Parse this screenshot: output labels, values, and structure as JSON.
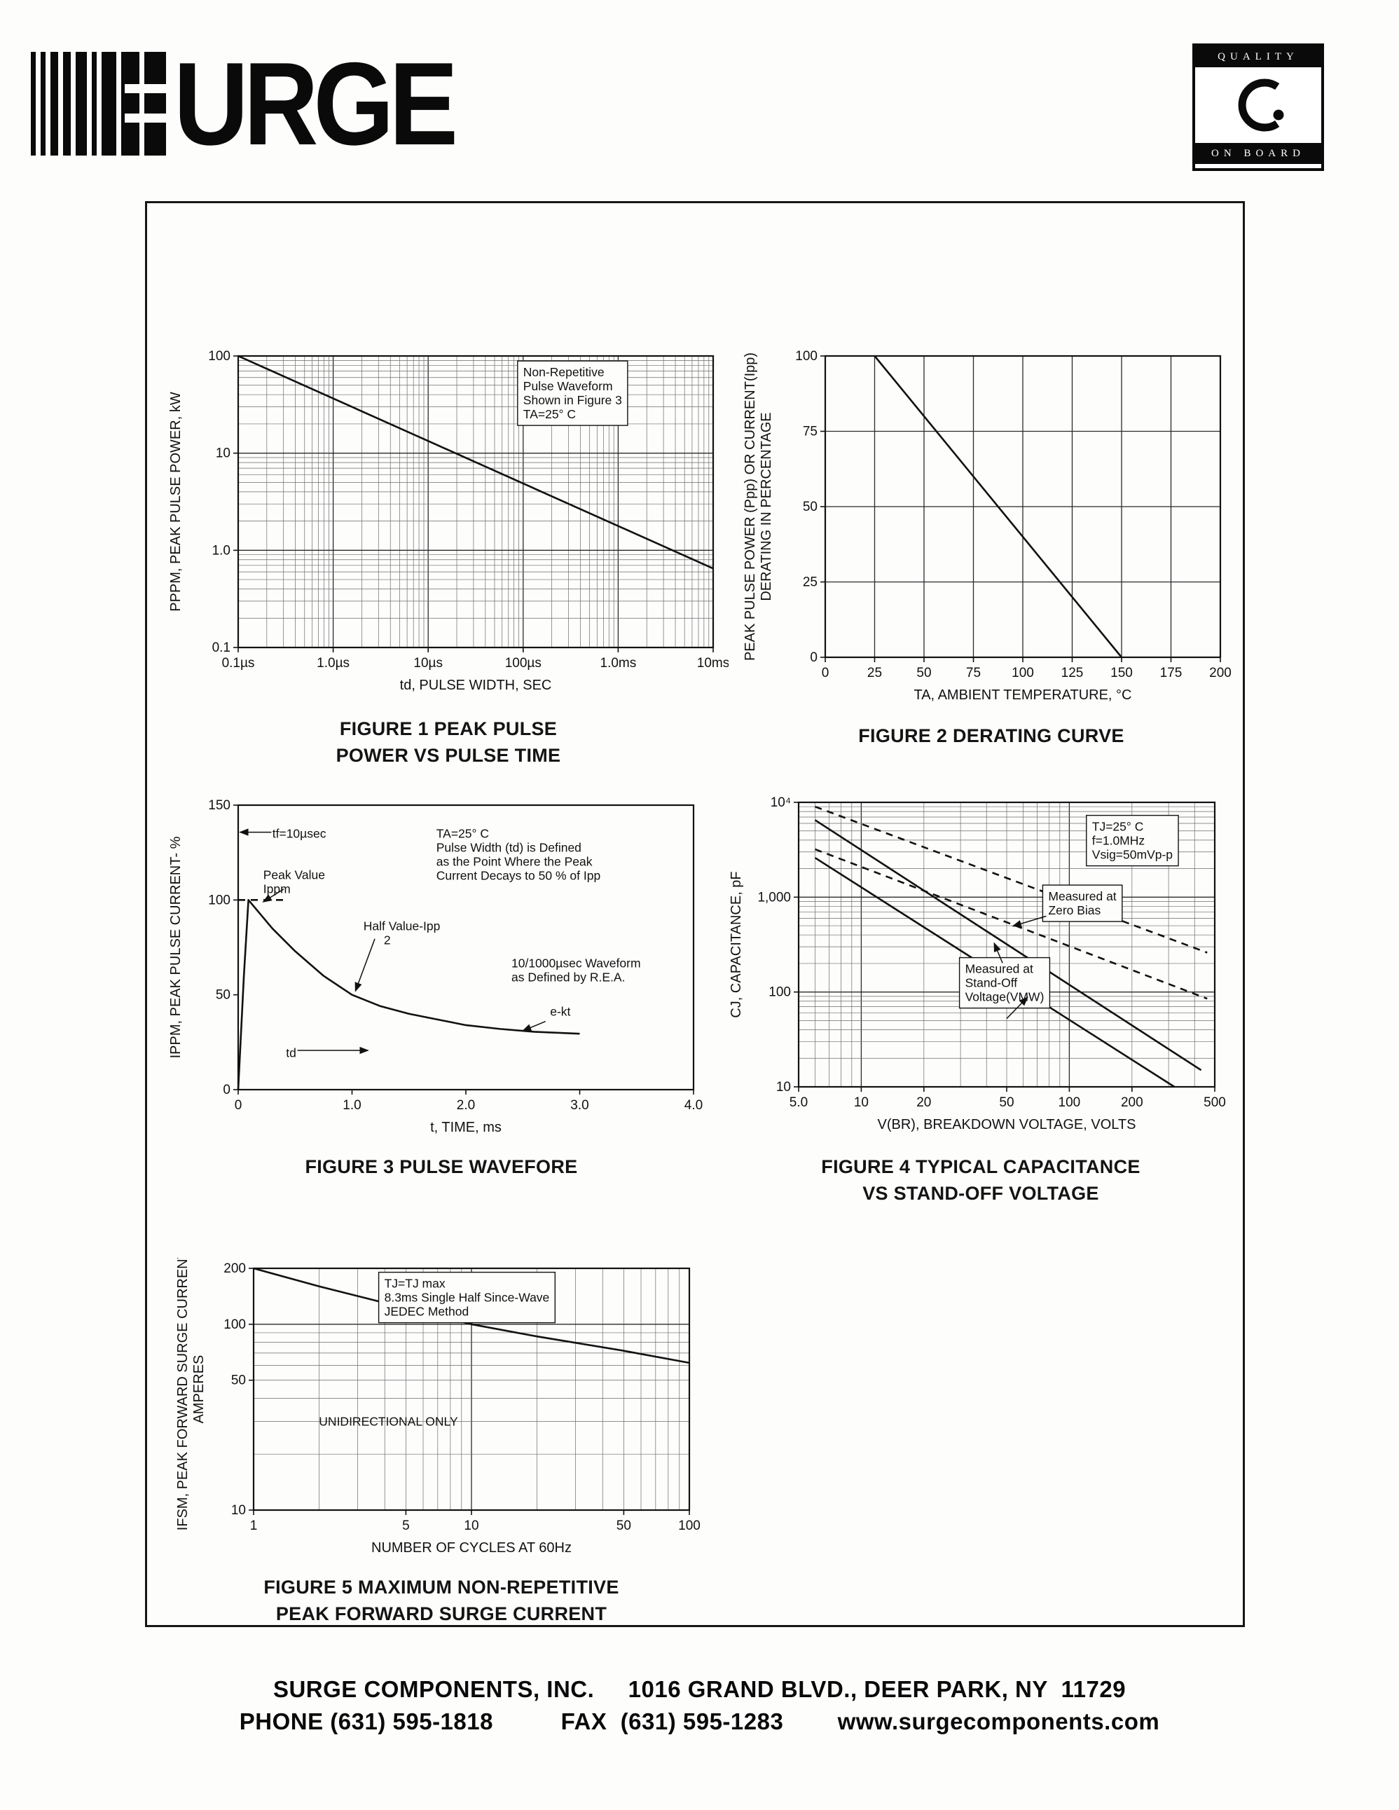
{
  "page": {
    "logo": {
      "text": "URGE"
    },
    "quality_badge": {
      "top": "QUALITY",
      "bottom": "ON BOARD"
    },
    "footer": {
      "line1": "SURGE COMPONENTS, INC.     1016 GRAND BLVD., DEER PARK, NY  11729",
      "line2": "PHONE (631) 595-1818          FAX  (631) 595-1283        www.surgecomponents.com"
    }
  },
  "chart_data": [
    {
      "id": "fig1",
      "type": "line",
      "caption_lines": [
        "FIGURE 1 PEAK PULSE",
        "POWER VS PULSE TIME"
      ],
      "x": {
        "type": "log",
        "min": 1e-07,
        "max": 0.01,
        "label": "td, PULSE WIDTH, SEC",
        "minor_grid": true,
        "ticks": [
          {
            "v": 1e-07,
            "t": "0.1µs"
          },
          {
            "v": 1e-06,
            "t": "1.0µs"
          },
          {
            "v": 1e-05,
            "t": "10µs"
          },
          {
            "v": 0.0001,
            "t": "100µs"
          },
          {
            "v": 0.001,
            "t": "1.0ms"
          },
          {
            "v": 0.01,
            "t": "10ms"
          }
        ]
      },
      "y": {
        "type": "log",
        "min": 0.1,
        "max": 100,
        "label_lines": [
          "PPPM, PEAK PULSE POWER, kW"
        ],
        "minor_grid": true,
        "ticks": [
          {
            "v": 100,
            "t": "100"
          },
          {
            "v": 10,
            "t": "10"
          },
          {
            "v": 1,
            "t": "1.0"
          },
          {
            "v": 0.1,
            "t": "0.1"
          }
        ]
      },
      "series": [
        {
          "name": "peak-pulse-power-line",
          "points": [
            [
              1e-07,
              100
            ],
            [
              0.01,
              0.65
            ]
          ]
        }
      ],
      "annotations": [
        {
          "fx": 0.6,
          "fy": 0.07,
          "box": true,
          "lines": [
            "Non-Repetitive",
            "Pulse Waveform",
            "Shown in Figure 3",
            "TA=25° C"
          ]
        }
      ]
    },
    {
      "id": "fig2",
      "type": "line",
      "caption_lines": [
        "FIGURE 2 DERATING CURVE"
      ],
      "x": {
        "type": "linear",
        "min": 0,
        "max": 200,
        "grid_step": 25,
        "label": "TA, AMBIENT  TEMPERATURE, °C",
        "ticks": [
          {
            "v": 0,
            "t": "0"
          },
          {
            "v": 25,
            "t": "25"
          },
          {
            "v": 50,
            "t": "50"
          },
          {
            "v": 75,
            "t": "75"
          },
          {
            "v": 100,
            "t": "100"
          },
          {
            "v": 125,
            "t": "125"
          },
          {
            "v": 150,
            "t": "150"
          },
          {
            "v": 175,
            "t": "175"
          },
          {
            "v": 200,
            "t": "200"
          }
        ]
      },
      "y": {
        "type": "linear",
        "min": 0,
        "max": 100,
        "grid_step": 25,
        "label_lines": [
          "PEAK PULSE POWER (Ppp) OR CURRENT(Ipp)",
          "DERATING IN PERCENTAGE"
        ],
        "ticks": [
          {
            "v": 100,
            "t": "100"
          },
          {
            "v": 75,
            "t": "75"
          },
          {
            "v": 50,
            "t": "50"
          },
          {
            "v": 25,
            "t": "25"
          },
          {
            "v": 0,
            "t": "0"
          }
        ]
      },
      "series": [
        {
          "name": "derating-line",
          "points": [
            [
              25,
              100
            ],
            [
              150,
              0
            ]
          ]
        }
      ],
      "annotations": []
    },
    {
      "id": "fig3",
      "type": "line",
      "caption_lines": [
        "FIGURE 3 PULSE WAVEFORE"
      ],
      "x": {
        "type": "linear",
        "min": 0,
        "max": 4,
        "label": "t, TIME, ms",
        "ticks": [
          {
            "v": 0,
            "t": "0"
          },
          {
            "v": 1,
            "t": "1.0"
          },
          {
            "v": 2,
            "t": "2.0"
          },
          {
            "v": 3,
            "t": "3.0"
          },
          {
            "v": 4,
            "t": "4.0"
          }
        ]
      },
      "y": {
        "type": "linear",
        "min": 0,
        "max": 150,
        "label_lines": [
          "IPPM, PEAK PULSE CURRENT- %"
        ],
        "ticks": [
          {
            "v": 150,
            "t": "150"
          },
          {
            "v": 100,
            "t": "100"
          },
          {
            "v": 50,
            "t": "50"
          },
          {
            "v": 0,
            "t": "0"
          }
        ]
      },
      "series": [
        {
          "name": "pulse-waveform",
          "points": [
            [
              0,
              0
            ],
            [
              0.05,
              60
            ],
            [
              0.09,
              100
            ],
            [
              0.3,
              85
            ],
            [
              0.5,
              73
            ],
            [
              0.75,
              60
            ],
            [
              1.0,
              50
            ],
            [
              1.25,
              44
            ],
            [
              1.5,
              40
            ],
            [
              1.75,
              37
            ],
            [
              2.0,
              34
            ],
            [
              2.3,
              32
            ],
            [
              2.6,
              30.5
            ],
            [
              3.0,
              29.5
            ]
          ]
        },
        {
          "name": "peak-value-dashed",
          "dash": true,
          "points": [
            [
              0,
              100
            ],
            [
              0.42,
              100
            ]
          ]
        }
      ],
      "annotations": [
        {
          "fx": 0.075,
          "fy": 0.115,
          "lines": [
            "tf=10µsec"
          ]
        },
        {
          "fx": 0.055,
          "fy": 0.26,
          "lines": [
            "Peak Value",
            "Ippm"
          ]
        },
        {
          "fx": 0.435,
          "fy": 0.115,
          "lines": [
            "TA=25° C",
            "Pulse Width (td) is Defined",
            "as the Point Where the Peak",
            "Current Decays to 50 % of Ipp"
          ]
        },
        {
          "fx": 0.275,
          "fy": 0.44,
          "lines": [
            "Half Value-Ipp",
            "      2"
          ]
        },
        {
          "fx": 0.6,
          "fy": 0.57,
          "lines": [
            "10/1000µsec Waveform",
            "as Defined by R.E.A."
          ]
        },
        {
          "fx": 0.685,
          "fy": 0.74,
          "lines": [
            "e-kt"
          ]
        },
        {
          "fx": 0.105,
          "fy": 0.885,
          "lines": [
            "td"
          ]
        }
      ],
      "arrows": [
        {
          "from": [
            0.073,
            0.095
          ],
          "to": [
            0.004,
            0.095
          ]
        },
        {
          "from": [
            0.3,
            0.47
          ],
          "to_d": [
            1.03,
            52
          ]
        },
        {
          "from": [
            0.1,
            0.295
          ],
          "to_d": [
            0.22,
            99
          ]
        },
        {
          "from": [
            0.675,
            0.76
          ],
          "to_d": [
            2.5,
            31
          ]
        },
        {
          "from": [
            0.13,
            0.862
          ],
          "to": [
            0.285,
            0.862
          ]
        }
      ]
    },
    {
      "id": "fig4",
      "type": "line",
      "caption_lines": [
        "FIGURE 4 TYPICAL CAPACITANCE",
        "VS STAND-OFF VOLTAGE"
      ],
      "x": {
        "type": "log",
        "min": 5,
        "max": 500,
        "label": "V(BR), BREAKDOWN VOLTAGE, VOLTS",
        "minor_grid": true,
        "ticks": [
          {
            "v": 5,
            "t": "5.0"
          },
          {
            "v": 10,
            "t": "10"
          },
          {
            "v": 20,
            "t": "20"
          },
          {
            "v": 50,
            "t": "50"
          },
          {
            "v": 100,
            "t": "100"
          },
          {
            "v": 200,
            "t": "200"
          },
          {
            "v": 500,
            "t": "500"
          }
        ]
      },
      "y": {
        "type": "log",
        "min": 10,
        "max": 10000,
        "label_lines": [
          "CJ, CAPACITANCE, pF"
        ],
        "minor_grid": true,
        "ticks": [
          {
            "v": 10000,
            "t": "10⁴"
          },
          {
            "v": 1000,
            "t": "1,000"
          },
          {
            "v": 100,
            "t": "100"
          },
          {
            "v": 10,
            "t": "10"
          }
        ]
      },
      "series": [
        {
          "name": "zero-bias-upper",
          "dash": true,
          "points": [
            [
              6,
              9000
            ],
            [
              460,
              260
            ]
          ]
        },
        {
          "name": "zero-bias-lower",
          "dash": true,
          "points": [
            [
              6,
              3200
            ],
            [
              460,
              85
            ]
          ]
        },
        {
          "name": "standoff-upper",
          "points": [
            [
              6,
              6500
            ],
            [
              430,
              15
            ]
          ]
        },
        {
          "name": "standoff-lower",
          "points": [
            [
              6,
              2600
            ],
            [
              320,
              10
            ]
          ]
        }
      ],
      "annotations": [
        {
          "fx": 0.705,
          "fy": 0.1,
          "box": true,
          "lines": [
            "TJ=25° C",
            "f=1.0MHz",
            "Vsig=50mVp-p"
          ]
        },
        {
          "fx": 0.6,
          "fy": 0.345,
          "box": true,
          "lines": [
            "Measured at",
            "Zero Bias"
          ]
        },
        {
          "fx": 0.4,
          "fy": 0.6,
          "box": true,
          "lines": [
            "Measured at",
            "Stand-Off",
            "Voltage(VMW)"
          ]
        }
      ],
      "arrows": [
        {
          "from": [
            0.595,
            0.4
          ],
          "to": [
            0.515,
            0.435
          ]
        },
        {
          "from": [
            0.49,
            0.565
          ],
          "to": [
            0.47,
            0.495
          ]
        },
        {
          "from": [
            0.5,
            0.76
          ],
          "to": [
            0.55,
            0.685
          ]
        }
      ]
    },
    {
      "id": "fig5",
      "type": "line",
      "caption_lines": [
        "FIGURE 5 MAXIMUM NON-REPETITIVE",
        "PEAK FORWARD SURGE CURRENT"
      ],
      "x": {
        "type": "log",
        "min": 1,
        "max": 100,
        "label": "NUMBER OF CYCLES AT 60Hz",
        "minor_grid": true,
        "ticks": [
          {
            "v": 1,
            "t": "1"
          },
          {
            "v": 5,
            "t": "5"
          },
          {
            "v": 10,
            "t": "10"
          },
          {
            "v": 50,
            "t": "50"
          },
          {
            "v": 100,
            "t": "100"
          }
        ]
      },
      "y": {
        "type": "log",
        "min": 10,
        "max": 200,
        "label_lines": [
          "IFSM, PEAK FORWARD SURGE CURRENT,",
          "AMPERES"
        ],
        "minor_grid": true,
        "ticks": [
          {
            "v": 200,
            "t": "200"
          },
          {
            "v": 100,
            "t": "100"
          },
          {
            "v": 50,
            "t": "50"
          },
          {
            "v": 10,
            "t": "10"
          }
        ]
      },
      "series": [
        {
          "name": "surge-current-line",
          "points": [
            [
              1,
              200
            ],
            [
              2,
              160
            ],
            [
              5,
              122
            ],
            [
              10,
              100
            ],
            [
              20,
              86
            ],
            [
              50,
              72
            ],
            [
              100,
              62
            ]
          ]
        }
      ],
      "annotations": [
        {
          "fx": 0.3,
          "fy": 0.08,
          "box": true,
          "lines": [
            "TJ=TJ max",
            "8.3ms Single Half Since-Wave",
            "JEDEC Method"
          ]
        },
        {
          "fx": 0.15,
          "fy": 0.65,
          "size": 20,
          "lines": [
            "UNIDIRECTIONAL ONLY"
          ]
        }
      ]
    }
  ]
}
